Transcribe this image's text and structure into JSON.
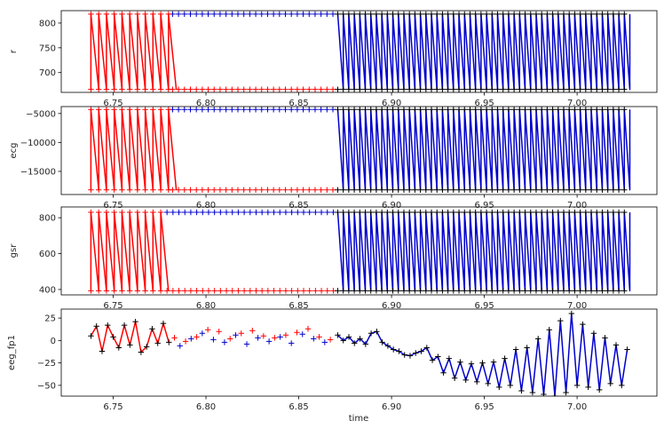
{
  "chart_data": {
    "type": "line",
    "xlabel": "time",
    "xticks": [
      "6.75",
      "6.80",
      "6.85",
      "6.90",
      "6.95",
      "7.00"
    ],
    "xlim": [
      6.722,
      7.043
    ],
    "colors": {
      "red": "#ff0000",
      "blue": "#0000cc",
      "marker": "#000000"
    },
    "time_range": [
      6.738,
      7.027
    ],
    "marker": "plus",
    "panels": [
      {
        "ylabel": "r",
        "ylim": [
          660,
          825
        ],
        "yticks": [
          700,
          750,
          800
        ],
        "ytick_labels": [
          "700",
          "750",
          "800"
        ],
        "low": 666,
        "high": 818,
        "red_zigzag_end": 6.781,
        "blue_zigzag_start": 6.871,
        "flat_red_end": 6.871
      },
      {
        "ylabel": "ecg",
        "ylim": [
          -19000,
          -3800
        ],
        "yticks": [
          -15000,
          -10000,
          -5000
        ],
        "ytick_labels": [
          "−15000",
          "−10000",
          "−5000"
        ],
        "low": -18200,
        "high": -4300,
        "red_zigzag_end": 6.781,
        "blue_zigzag_start": 6.871,
        "flat_red_end": 6.871
      },
      {
        "ylabel": "gsr",
        "ylim": [
          370,
          860
        ],
        "yticks": [
          400,
          600,
          800
        ],
        "ytick_labels": [
          "400",
          "600",
          "800"
        ],
        "low": 393,
        "high": 830,
        "red_zigzag_end": 6.778,
        "blue_zigzag_start": 6.871,
        "flat_red_end": 6.871
      },
      {
        "ylabel": "eeg_fp1",
        "ylim": [
          -62,
          35
        ],
        "yticks": [
          -50,
          -25,
          0,
          25
        ],
        "ytick_labels": [
          "−50",
          "−25",
          "0",
          "25"
        ],
        "red_zigzag_end": 6.781,
        "blue_start": 6.871,
        "series_red": {
          "x": [
            6.738,
            6.741,
            6.744,
            6.747,
            6.75,
            6.753,
            6.756,
            6.759,
            6.762,
            6.765,
            6.768,
            6.771,
            6.774,
            6.777,
            6.78
          ],
          "y": [
            5,
            16,
            -12,
            17,
            4,
            -8,
            17,
            -5,
            21,
            -13,
            -7,
            13,
            -3,
            19,
            -2
          ]
        },
        "series_scatter_red": {
          "x": [
            6.783,
            6.789,
            6.795,
            6.801,
            6.807,
            6.813,
            6.819,
            6.825,
            6.831,
            6.837,
            6.843,
            6.849,
            6.855,
            6.861,
            6.867
          ],
          "y": [
            3,
            -1,
            4,
            12,
            10,
            2,
            8,
            11,
            5,
            3,
            6,
            9,
            13,
            4,
            1
          ]
        },
        "series_scatter_blue": {
          "x": [
            6.786,
            6.792,
            6.798,
            6.804,
            6.81,
            6.816,
            6.822,
            6.828,
            6.834,
            6.84,
            6.846,
            6.852,
            6.858,
            6.864
          ],
          "y": [
            -6,
            2,
            8,
            1,
            -2,
            6,
            -4,
            3,
            -1,
            4,
            -3,
            7,
            2,
            -2
          ]
        },
        "series_blue": {
          "x": [
            6.871,
            6.874,
            6.877,
            6.88,
            6.883,
            6.886,
            6.889,
            6.892,
            6.895,
            6.898,
            6.901,
            6.904,
            6.907,
            6.91,
            6.913,
            6.916,
            6.919,
            6.922,
            6.925,
            6.928,
            6.931,
            6.934,
            6.937,
            6.94,
            6.943,
            6.946,
            6.949,
            6.952,
            6.955,
            6.958,
            6.961,
            6.964,
            6.967,
            6.97,
            6.973,
            6.976,
            6.979,
            6.982,
            6.985,
            6.988,
            6.991,
            6.994,
            6.997,
            7.0,
            7.003,
            7.006,
            7.009,
            7.012,
            7.015,
            7.018,
            7.021,
            7.024,
            7.027
          ],
          "y": [
            6,
            0,
            4,
            -3,
            2,
            -4,
            8,
            10,
            -2,
            -6,
            -10,
            -12,
            -16,
            -17,
            -14,
            -12,
            -8,
            -22,
            -18,
            -36,
            -20,
            -42,
            -24,
            -44,
            -26,
            -46,
            -25,
            -48,
            -24,
            -52,
            -20,
            -50,
            -10,
            -56,
            -8,
            -58,
            2,
            -60,
            12,
            -62,
            22,
            -58,
            30,
            -50,
            18,
            -52,
            8,
            -55,
            3,
            -48,
            -5,
            -50,
            -10
          ]
        }
      }
    ]
  }
}
